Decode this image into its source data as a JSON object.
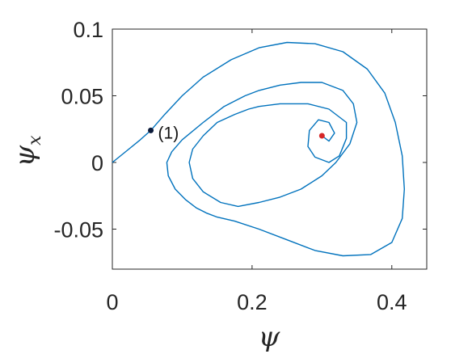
{
  "chart_data": {
    "type": "line",
    "title": "",
    "xlabel": "ψ",
    "ylabel": "ψ_x",
    "ylabel_base": "ψ",
    "ylabel_sub": "x",
    "xlim": [
      0,
      0.45
    ],
    "ylim": [
      -0.08,
      0.1
    ],
    "xticks": [
      0,
      0.2,
      0.4
    ],
    "xtick_labels": [
      "0",
      "0.2",
      "0.4"
    ],
    "yticks": [
      -0.05,
      0,
      0.05,
      0.1
    ],
    "ytick_labels": [
      "-0.05",
      "0",
      "0.05",
      "0.1"
    ],
    "grid": false,
    "colors": {
      "trajectory": "#0072BD",
      "start_point": "#0b1a3a",
      "fixed_point": "#d62728",
      "axes": "#262626"
    },
    "series": [
      {
        "x": [
          0.0,
          0.02,
          0.04,
          0.055,
          0.075,
          0.1,
          0.13,
          0.17,
          0.21,
          0.25,
          0.29,
          0.33,
          0.365,
          0.39,
          0.405,
          0.415,
          0.418,
          0.415,
          0.4,
          0.37,
          0.33,
          0.29,
          0.25,
          0.21,
          0.175,
          0.15,
          0.135,
          0.12,
          0.105,
          0.09,
          0.08,
          0.078,
          0.085,
          0.1,
          0.13,
          0.16,
          0.19,
          0.21,
          0.24,
          0.27,
          0.3,
          0.33,
          0.345,
          0.35,
          0.34,
          0.32,
          0.3,
          0.27,
          0.24,
          0.21,
          0.18,
          0.155,
          0.13,
          0.115,
          0.11,
          0.115,
          0.13,
          0.15,
          0.175,
          0.195,
          0.21,
          0.24,
          0.28,
          0.31,
          0.335,
          0.335,
          0.325,
          0.31,
          0.29,
          0.28,
          0.282,
          0.295,
          0.31,
          0.318,
          0.31,
          0.3
        ],
        "y": [
          0.0,
          0.0085,
          0.017,
          0.024,
          0.036,
          0.05,
          0.064,
          0.077,
          0.086,
          0.09,
          0.089,
          0.083,
          0.07,
          0.052,
          0.03,
          0.005,
          -0.02,
          -0.042,
          -0.06,
          -0.069,
          -0.07,
          -0.066,
          -0.058,
          -0.05,
          -0.044,
          -0.041,
          -0.038,
          -0.034,
          -0.028,
          -0.02,
          -0.01,
          0.0,
          0.008,
          0.017,
          0.03,
          0.042,
          0.05,
          0.054,
          0.058,
          0.06,
          0.06,
          0.054,
          0.044,
          0.03,
          0.014,
          0.0,
          -0.01,
          -0.02,
          -0.026,
          -0.03,
          -0.033,
          -0.03,
          -0.022,
          -0.012,
          0.0,
          0.01,
          0.02,
          0.03,
          0.036,
          0.04,
          0.042,
          0.044,
          0.044,
          0.04,
          0.03,
          0.018,
          0.005,
          0.0,
          0.004,
          0.012,
          0.024,
          0.032,
          0.03,
          0.022,
          0.016,
          0.02
        ]
      }
    ],
    "points": [
      {
        "label": "(1)",
        "x": 0.055,
        "y": 0.024
      },
      {
        "label": "",
        "x": 0.3,
        "y": 0.02
      }
    ]
  }
}
